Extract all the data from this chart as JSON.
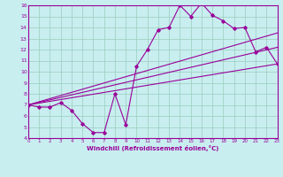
{
  "xlabel": "Windchill (Refroidissement éolien,°C)",
  "background_color": "#c8eef0",
  "line_color": "#990099",
  "grid_color": "#99ccbb",
  "x_hours": [
    0,
    1,
    2,
    3,
    4,
    5,
    6,
    7,
    8,
    9,
    10,
    11,
    12,
    13,
    14,
    15,
    16,
    17,
    18,
    19,
    20,
    21,
    22,
    23
  ],
  "y_temp": [
    7.0,
    6.8,
    6.8,
    7.2,
    6.5,
    5.3,
    4.5,
    4.5,
    8.0,
    5.2,
    10.5,
    12.0,
    13.8,
    14.0,
    16.0,
    15.0,
    16.2,
    15.1,
    14.6,
    13.9,
    14.0,
    11.8,
    12.2,
    10.7
  ],
  "y_line1_start": 7.0,
  "y_line1_end": 10.7,
  "y_line2_start": 7.0,
  "y_line2_end": 13.5,
  "ylim": [
    4,
    16
  ],
  "xlim": [
    0,
    23
  ],
  "yticks": [
    4,
    5,
    6,
    7,
    8,
    9,
    10,
    11,
    12,
    13,
    14,
    15,
    16
  ],
  "xticks": [
    0,
    1,
    2,
    3,
    4,
    5,
    6,
    7,
    8,
    9,
    10,
    11,
    12,
    13,
    14,
    15,
    16,
    17,
    18,
    19,
    20,
    21,
    22,
    23
  ],
  "x_start": 0,
  "x_end": 23
}
